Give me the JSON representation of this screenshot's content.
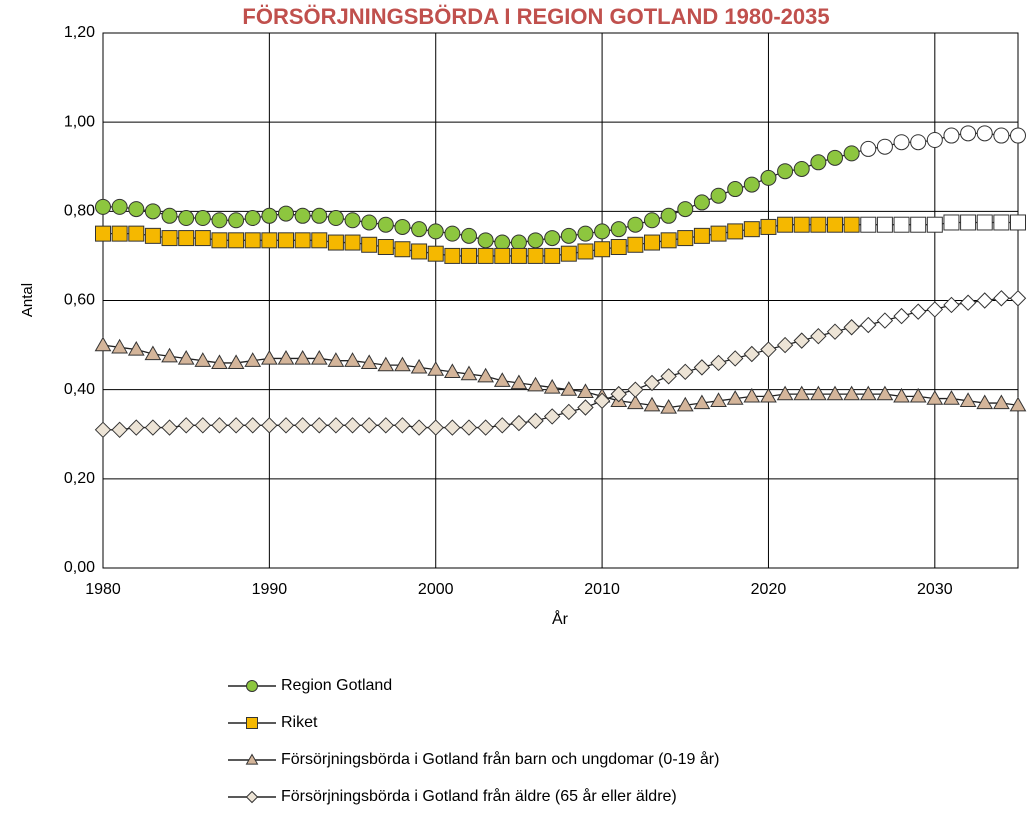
{
  "chart_data": {
    "type": "line",
    "title": "FÖRSÖRJNINGSBÖRDA I REGION GOTLAND 1980-2035",
    "x_label": "År",
    "y_label": "Antal",
    "x": [
      1980,
      1981,
      1982,
      1983,
      1984,
      1985,
      1986,
      1987,
      1988,
      1989,
      1990,
      1991,
      1992,
      1993,
      1994,
      1995,
      1996,
      1997,
      1998,
      1999,
      2000,
      2001,
      2002,
      2003,
      2004,
      2005,
      2006,
      2007,
      2008,
      2009,
      2010,
      2011,
      2012,
      2013,
      2014,
      2015,
      2016,
      2017,
      2018,
      2019,
      2020,
      2021,
      2022,
      2023,
      2024,
      2025,
      2026,
      2027,
      2028,
      2029,
      2030,
      2031,
      2032,
      2033,
      2034,
      2035
    ],
    "projection_from": 2026,
    "series": [
      {
        "name": "Region Gotland",
        "color": "#8dc63f",
        "marker": "circle",
        "projection_color": "#ffffff",
        "values": [
          0.81,
          0.81,
          0.805,
          0.8,
          0.79,
          0.785,
          0.785,
          0.78,
          0.78,
          0.785,
          0.79,
          0.795,
          0.79,
          0.79,
          0.785,
          0.78,
          0.775,
          0.77,
          0.765,
          0.76,
          0.755,
          0.75,
          0.745,
          0.735,
          0.73,
          0.73,
          0.735,
          0.74,
          0.745,
          0.75,
          0.755,
          0.76,
          0.77,
          0.78,
          0.79,
          0.805,
          0.82,
          0.835,
          0.85,
          0.86,
          0.875,
          0.89,
          0.895,
          0.91,
          0.92,
          0.93,
          0.94,
          0.945,
          0.955,
          0.955,
          0.96,
          0.97,
          0.975,
          0.975,
          0.97,
          0.97
        ]
      },
      {
        "name": "Riket",
        "color": "#f5b800",
        "marker": "square",
        "projection_color": "#ffffff",
        "values": [
          0.75,
          0.75,
          0.75,
          0.745,
          0.74,
          0.74,
          0.74,
          0.735,
          0.735,
          0.735,
          0.735,
          0.735,
          0.735,
          0.735,
          0.73,
          0.73,
          0.725,
          0.72,
          0.715,
          0.71,
          0.705,
          0.7,
          0.7,
          0.7,
          0.7,
          0.7,
          0.7,
          0.7,
          0.705,
          0.71,
          0.715,
          0.72,
          0.725,
          0.73,
          0.735,
          0.74,
          0.745,
          0.75,
          0.755,
          0.76,
          0.765,
          0.77,
          0.77,
          0.77,
          0.77,
          0.77,
          0.77,
          0.77,
          0.77,
          0.77,
          0.77,
          0.775,
          0.775,
          0.775,
          0.775,
          0.775
        ]
      },
      {
        "name": "Försörjningsbörda i Gotland från barn och ungdomar (0-19 år)",
        "color": "#d4b59a",
        "marker": "triangle",
        "values": [
          0.5,
          0.495,
          0.49,
          0.48,
          0.475,
          0.47,
          0.465,
          0.46,
          0.46,
          0.465,
          0.47,
          0.47,
          0.47,
          0.47,
          0.465,
          0.465,
          0.46,
          0.455,
          0.455,
          0.45,
          0.445,
          0.44,
          0.435,
          0.43,
          0.42,
          0.415,
          0.41,
          0.405,
          0.4,
          0.395,
          0.385,
          0.375,
          0.37,
          0.365,
          0.36,
          0.365,
          0.37,
          0.375,
          0.38,
          0.385,
          0.385,
          0.39,
          0.39,
          0.39,
          0.39,
          0.39,
          0.39,
          0.39,
          0.385,
          0.385,
          0.38,
          0.38,
          0.375,
          0.37,
          0.37,
          0.365
        ]
      },
      {
        "name": "Försörjningsbörda i Gotland från äldre (65 år eller äldre)",
        "color": "#ede4d6",
        "marker": "diamond",
        "projection_color": "#ffffff",
        "values": [
          0.31,
          0.31,
          0.315,
          0.315,
          0.315,
          0.32,
          0.32,
          0.32,
          0.32,
          0.32,
          0.32,
          0.32,
          0.32,
          0.32,
          0.32,
          0.32,
          0.32,
          0.32,
          0.32,
          0.315,
          0.315,
          0.315,
          0.315,
          0.315,
          0.32,
          0.325,
          0.33,
          0.34,
          0.35,
          0.36,
          0.375,
          0.39,
          0.4,
          0.415,
          0.43,
          0.44,
          0.45,
          0.46,
          0.47,
          0.48,
          0.49,
          0.5,
          0.51,
          0.52,
          0.53,
          0.54,
          0.545,
          0.555,
          0.565,
          0.575,
          0.58,
          0.59,
          0.595,
          0.6,
          0.605,
          0.605
        ]
      }
    ],
    "xlim": [
      1980,
      2035
    ],
    "xticks": [
      1980,
      1990,
      2000,
      2010,
      2020,
      2030
    ],
    "ylim": [
      0,
      1.2
    ],
    "yticks": [
      {
        "value": 0,
        "label": "0,00"
      },
      {
        "value": 0.2,
        "label": "0,20"
      },
      {
        "value": 0.4,
        "label": "0,40"
      },
      {
        "value": 0.6,
        "label": "0,60"
      },
      {
        "value": 0.8,
        "label": "0,80"
      },
      {
        "value": 1.0,
        "label": "1,00"
      },
      {
        "value": 1.2,
        "label": "1,20"
      }
    ],
    "grid": true,
    "legend": "bottom"
  }
}
